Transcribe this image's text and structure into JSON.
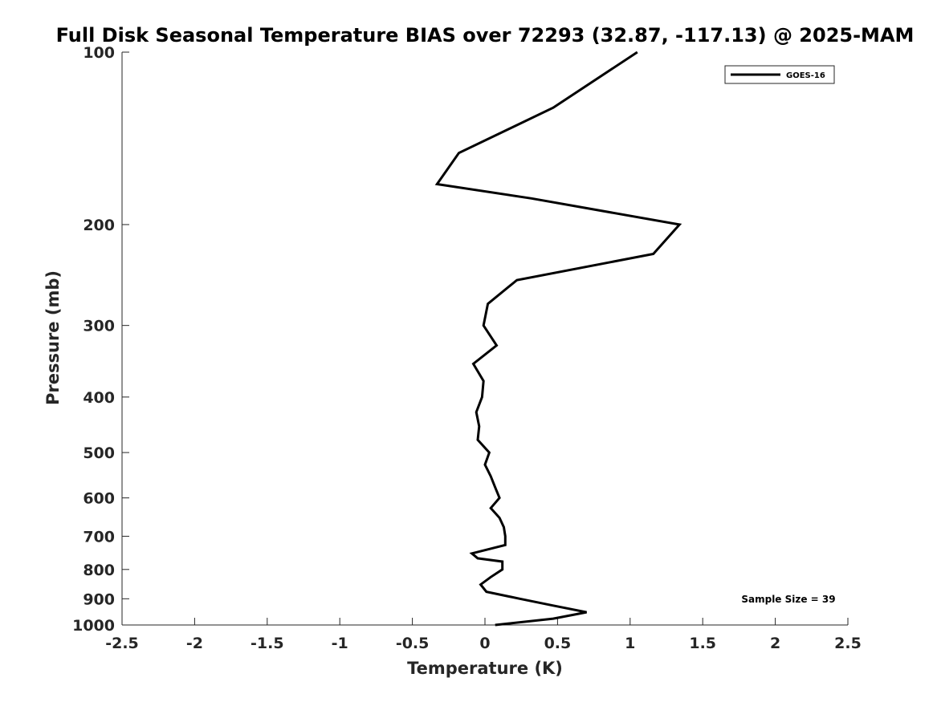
{
  "chart_data": {
    "type": "line",
    "title": "Full Disk Seasonal Temperature BIAS over 72293 (32.87, -117.13) @ 2025-MAM",
    "xlabel": "Temperature (K)",
    "ylabel": "Pressure (mb)",
    "xlim": [
      -2.5,
      2.5
    ],
    "ylim": [
      100,
      1000
    ],
    "y_scale": "log",
    "y_reversed": true,
    "x_ticks": [
      -2.5,
      -2,
      -1.5,
      -1,
      -0.5,
      0,
      0.5,
      1,
      1.5,
      2,
      2.5
    ],
    "x_tick_labels": [
      "-2.5",
      "-2",
      "-1.5",
      "-1",
      "-0.5",
      "0",
      "0.5",
      "1",
      "1.5",
      "2",
      "2.5"
    ],
    "y_ticks": [
      100,
      200,
      300,
      400,
      500,
      600,
      700,
      800,
      900,
      1000
    ],
    "y_tick_labels": [
      "100",
      "200",
      "300",
      "400",
      "500",
      "600",
      "700",
      "800",
      "900",
      "1000"
    ],
    "grid": false,
    "legend_position": "top-right",
    "annotation": "Sample Size = 39",
    "series": [
      {
        "name": "GOES-16",
        "color": "#000000",
        "points": [
          {
            "x": 1.05,
            "y": 100
          },
          {
            "x": 0.47,
            "y": 125
          },
          {
            "x": -0.18,
            "y": 150
          },
          {
            "x": -0.33,
            "y": 170
          },
          {
            "x": 0.32,
            "y": 180
          },
          {
            "x": 1.34,
            "y": 200
          },
          {
            "x": 1.16,
            "y": 225
          },
          {
            "x": 0.22,
            "y": 250
          },
          {
            "x": 0.02,
            "y": 275
          },
          {
            "x": -0.01,
            "y": 300
          },
          {
            "x": 0.08,
            "y": 325
          },
          {
            "x": -0.08,
            "y": 350
          },
          {
            "x": -0.01,
            "y": 375
          },
          {
            "x": -0.02,
            "y": 400
          },
          {
            "x": -0.06,
            "y": 425
          },
          {
            "x": -0.04,
            "y": 450
          },
          {
            "x": -0.05,
            "y": 475
          },
          {
            "x": 0.03,
            "y": 500
          },
          {
            "x": 0.0,
            "y": 525
          },
          {
            "x": 0.04,
            "y": 550
          },
          {
            "x": 0.07,
            "y": 575
          },
          {
            "x": 0.1,
            "y": 600
          },
          {
            "x": 0.04,
            "y": 625
          },
          {
            "x": 0.1,
            "y": 650
          },
          {
            "x": 0.13,
            "y": 675
          },
          {
            "x": 0.14,
            "y": 700
          },
          {
            "x": 0.14,
            "y": 725
          },
          {
            "x": -0.09,
            "y": 750
          },
          {
            "x": -0.05,
            "y": 765
          },
          {
            "x": 0.12,
            "y": 775
          },
          {
            "x": 0.12,
            "y": 800
          },
          {
            "x": 0.04,
            "y": 825
          },
          {
            "x": -0.03,
            "y": 850
          },
          {
            "x": 0.01,
            "y": 875
          },
          {
            "x": 0.24,
            "y": 900
          },
          {
            "x": 0.47,
            "y": 925
          },
          {
            "x": 0.7,
            "y": 950
          },
          {
            "x": 0.47,
            "y": 975
          },
          {
            "x": 0.07,
            "y": 1000
          }
        ]
      }
    ]
  }
}
